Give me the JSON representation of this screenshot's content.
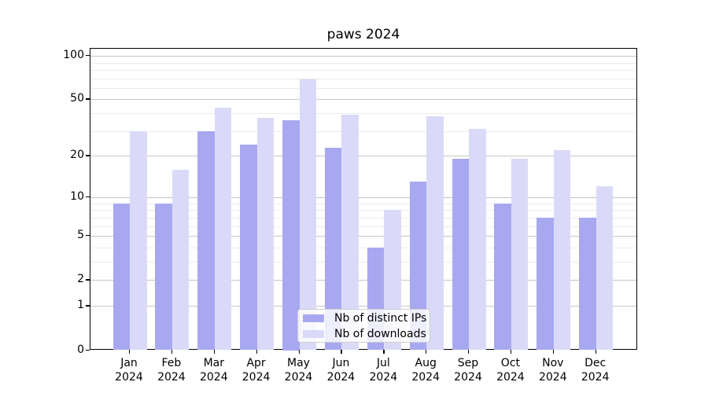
{
  "title": "paws 2024",
  "colors": {
    "ips_bar": "#a8a8f0",
    "downloads_bar": "#dadaf8",
    "grid_major": "#c6c6c6",
    "grid_minor": "#ebebeb",
    "spine": "#000000",
    "legend_border": "#cccccc"
  },
  "legend": {
    "items": [
      {
        "label": "Nb of distinct IPs",
        "color_key": "ips_bar"
      },
      {
        "label": "Nb of downloads",
        "color_key": "downloads_bar"
      }
    ]
  },
  "y_axis": {
    "tick_labels": [
      "0",
      "1",
      "2",
      "5",
      "10",
      "20",
      "50",
      "100"
    ],
    "major_ticks": [
      0,
      1,
      2,
      5,
      10,
      20,
      50,
      100
    ],
    "minor_gridlines": [
      3,
      4,
      6,
      7,
      8,
      9,
      30,
      40,
      60,
      70,
      80,
      90
    ],
    "scale": "log1p"
  },
  "chart_data": {
    "type": "bar",
    "title": "paws 2024",
    "categories": [
      "Jan 2024",
      "Feb 2024",
      "Mar 2024",
      "Apr 2024",
      "May 2024",
      "Jun 2024",
      "Jul 2024",
      "Aug 2024",
      "Sep 2024",
      "Oct 2024",
      "Nov 2024",
      "Dec 2024"
    ],
    "series": [
      {
        "name": "Nb of distinct IPs",
        "color": "#a8a8f0",
        "values": [
          9,
          9,
          30,
          24,
          36,
          23,
          4,
          13,
          19,
          9,
          7,
          7
        ]
      },
      {
        "name": "Nb of downloads",
        "color": "#dadaf8",
        "values": [
          30,
          16,
          44,
          37,
          69,
          39,
          8,
          38,
          31,
          19,
          22,
          12
        ]
      }
    ],
    "xlabel": "",
    "ylabel": "",
    "yscale": "log1p",
    "yticks": [
      0,
      1,
      2,
      5,
      10,
      20,
      50,
      100
    ],
    "ylim": [
      0,
      110
    ],
    "grid": true,
    "legend_position": "lower-center"
  }
}
